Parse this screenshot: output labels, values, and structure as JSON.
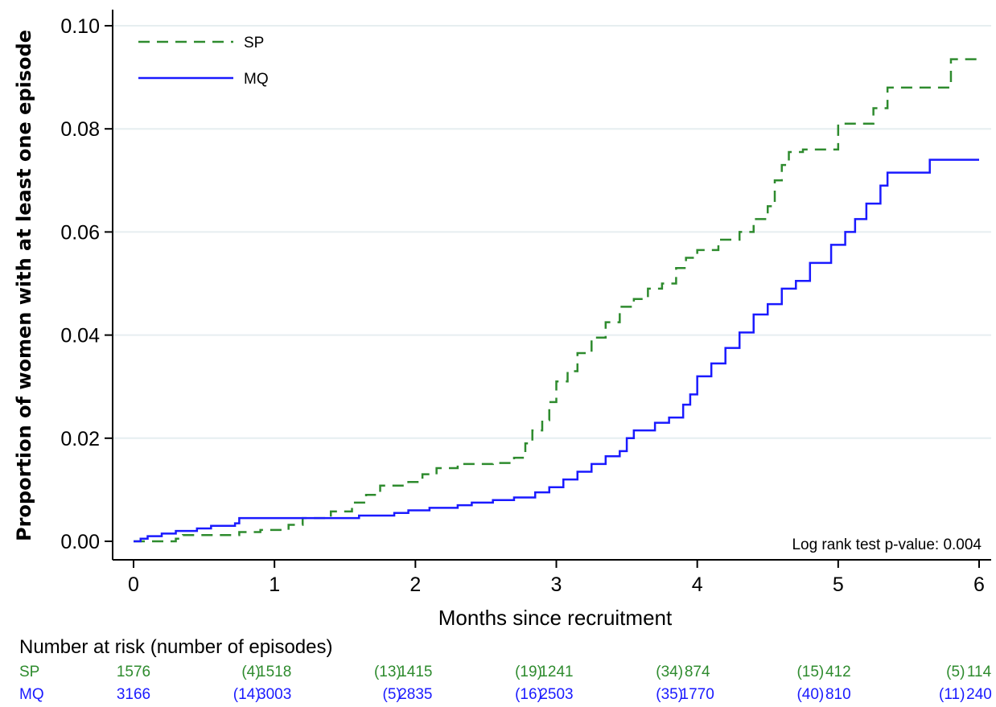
{
  "chart_data": {
    "type": "line",
    "title": "",
    "xlabel": "Months since recruitment",
    "ylabel": "Proportion of women with at least one episode",
    "xlim": [
      0,
      6
    ],
    "ylim": [
      0,
      0.1
    ],
    "x_ticks": [
      "0",
      "1",
      "2",
      "3",
      "4",
      "5",
      "6"
    ],
    "y_ticks": [
      "0.00",
      "0.02",
      "0.04",
      "0.06",
      "0.08",
      "0.10"
    ],
    "grid": true,
    "legend_position": "top-left",
    "annotation": "Log rank test p-value: 0.004",
    "series": [
      {
        "name": "SP",
        "color": "#2e8b2e",
        "style": "dashed",
        "step": true,
        "points": [
          [
            0,
            0
          ],
          [
            0.3,
            0.0005
          ],
          [
            0.35,
            0.0012
          ],
          [
            0.75,
            0.0018
          ],
          [
            0.9,
            0.0022
          ],
          [
            1.1,
            0.0032
          ],
          [
            1.2,
            0.0045
          ],
          [
            1.4,
            0.0058
          ],
          [
            1.55,
            0.0075
          ],
          [
            1.65,
            0.009
          ],
          [
            1.75,
            0.0108
          ],
          [
            1.95,
            0.0115
          ],
          [
            2.05,
            0.013
          ],
          [
            2.15,
            0.0142
          ],
          [
            2.3,
            0.015
          ],
          [
            2.55,
            0.0152
          ],
          [
            2.7,
            0.0162
          ],
          [
            2.78,
            0.019
          ],
          [
            2.83,
            0.0215
          ],
          [
            2.9,
            0.0235
          ],
          [
            2.95,
            0.027
          ],
          [
            3.0,
            0.031
          ],
          [
            3.08,
            0.033
          ],
          [
            3.15,
            0.0365
          ],
          [
            3.25,
            0.0395
          ],
          [
            3.35,
            0.0425
          ],
          [
            3.45,
            0.0455
          ],
          [
            3.55,
            0.047
          ],
          [
            3.65,
            0.049
          ],
          [
            3.75,
            0.05
          ],
          [
            3.85,
            0.053
          ],
          [
            3.92,
            0.055
          ],
          [
            4.0,
            0.0565
          ],
          [
            4.15,
            0.0585
          ],
          [
            4.3,
            0.06
          ],
          [
            4.4,
            0.0625
          ],
          [
            4.5,
            0.065
          ],
          [
            4.55,
            0.07
          ],
          [
            4.6,
            0.073
          ],
          [
            4.65,
            0.0755
          ],
          [
            4.75,
            0.076
          ],
          [
            5.0,
            0.081
          ],
          [
            5.25,
            0.084
          ],
          [
            5.35,
            0.088
          ],
          [
            5.8,
            0.0935
          ],
          [
            6.0,
            0.0935
          ]
        ]
      },
      {
        "name": "MQ",
        "color": "#1a1aff",
        "style": "solid",
        "step": true,
        "points": [
          [
            0,
            0
          ],
          [
            0.05,
            0.0005
          ],
          [
            0.1,
            0.001
          ],
          [
            0.2,
            0.0015
          ],
          [
            0.3,
            0.002
          ],
          [
            0.45,
            0.0025
          ],
          [
            0.55,
            0.003
          ],
          [
            0.72,
            0.0035
          ],
          [
            0.75,
            0.0045
          ],
          [
            1.6,
            0.005
          ],
          [
            1.85,
            0.0055
          ],
          [
            1.95,
            0.006
          ],
          [
            2.1,
            0.0065
          ],
          [
            2.3,
            0.007
          ],
          [
            2.4,
            0.0075
          ],
          [
            2.55,
            0.008
          ],
          [
            2.7,
            0.0085
          ],
          [
            2.85,
            0.0095
          ],
          [
            2.95,
            0.0105
          ],
          [
            3.05,
            0.012
          ],
          [
            3.15,
            0.0135
          ],
          [
            3.25,
            0.015
          ],
          [
            3.35,
            0.0165
          ],
          [
            3.45,
            0.0175
          ],
          [
            3.5,
            0.02
          ],
          [
            3.55,
            0.0215
          ],
          [
            3.7,
            0.023
          ],
          [
            3.8,
            0.024
          ],
          [
            3.9,
            0.0265
          ],
          [
            3.95,
            0.0285
          ],
          [
            4.0,
            0.032
          ],
          [
            4.1,
            0.0345
          ],
          [
            4.2,
            0.0375
          ],
          [
            4.3,
            0.0405
          ],
          [
            4.4,
            0.044
          ],
          [
            4.5,
            0.046
          ],
          [
            4.6,
            0.049
          ],
          [
            4.7,
            0.0505
          ],
          [
            4.8,
            0.054
          ],
          [
            4.95,
            0.0575
          ],
          [
            5.05,
            0.06
          ],
          [
            5.12,
            0.0625
          ],
          [
            5.2,
            0.0655
          ],
          [
            5.3,
            0.069
          ],
          [
            5.35,
            0.0715
          ],
          [
            5.65,
            0.074
          ],
          [
            6.0,
            0.074
          ]
        ]
      }
    ],
    "risk_table": {
      "title": "Number at risk (number of episodes)",
      "rows": [
        {
          "label": "SP",
          "color": "#2e8b2e",
          "at_risk": [
            "1576",
            "1518",
            "1415",
            "1241",
            "874",
            "412",
            "114"
          ],
          "episodes": [
            "(4)",
            "(13)",
            "(19)",
            "(34)",
            "(15)",
            "(5)"
          ]
        },
        {
          "label": "MQ",
          "color": "#1a1aff",
          "at_risk": [
            "3166",
            "3003",
            "2835",
            "2503",
            "1770",
            "810",
            "240"
          ],
          "episodes": [
            "(14)",
            "(5)",
            "(16)",
            "(35)",
            "(40)",
            "(11)"
          ]
        }
      ]
    }
  }
}
